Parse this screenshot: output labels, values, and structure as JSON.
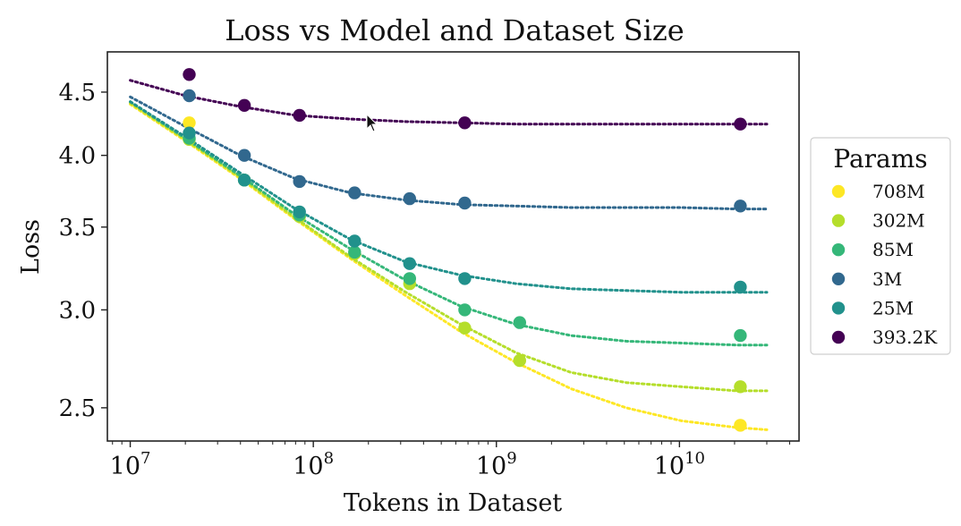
{
  "chart_data": {
    "type": "scatter",
    "title": "Loss vs Model and Dataset Size",
    "xlabel": "Tokens in Dataset",
    "ylabel": "Loss",
    "xscale": "log",
    "yscale": "log",
    "xlim": [
      7500000,
      45000000000
    ],
    "ylim": [
      2.35,
      4.85
    ],
    "yticks": [
      2.5,
      3.0,
      3.5,
      4.0,
      4.5
    ],
    "ytick_labels": [
      "2.5",
      "3.0",
      "3.5",
      "4.0",
      "4.5"
    ],
    "xticks": [
      {
        "value": 10000000,
        "base": "10",
        "exp": "7"
      },
      {
        "value": 100000000,
        "base": "10",
        "exp": "8"
      },
      {
        "value": 1000000000,
        "base": "10",
        "exp": "9"
      },
      {
        "value": 10000000000,
        "base": "10",
        "exp": "10"
      }
    ],
    "legend": {
      "title": "Params",
      "position": "right"
    },
    "series": [
      {
        "name": "708M",
        "color": "#fde725",
        "points": [
          [
            21000000,
            4.25
          ],
          [
            21500000000,
            2.42
          ]
        ],
        "fit": [
          [
            10000000,
            4.4
          ],
          [
            20000000,
            4.11
          ],
          [
            40000000,
            3.83
          ],
          [
            80000000,
            3.55
          ],
          [
            160000000,
            3.3
          ],
          [
            320000000,
            3.08
          ],
          [
            640000000,
            2.88
          ],
          [
            1280000000,
            2.72
          ],
          [
            2560000000,
            2.59
          ],
          [
            5120000000,
            2.5
          ],
          [
            10240000000,
            2.44
          ],
          [
            20480000000,
            2.41
          ],
          [
            30000000000,
            2.4
          ]
        ]
      },
      {
        "name": "302M",
        "color": "#b5de2b",
        "points": [
          [
            21000000,
            4.12
          ],
          [
            42000000,
            3.82
          ],
          [
            84000000,
            3.57
          ],
          [
            168000000,
            3.33
          ],
          [
            336000000,
            3.15
          ],
          [
            672000000,
            2.9
          ],
          [
            1340000000,
            2.73
          ],
          [
            21500000000,
            2.6
          ]
        ],
        "fit": [
          [
            10000000,
            4.41
          ],
          [
            20000000,
            4.12
          ],
          [
            40000000,
            3.84
          ],
          [
            80000000,
            3.56
          ],
          [
            160000000,
            3.31
          ],
          [
            320000000,
            3.1
          ],
          [
            640000000,
            2.92
          ],
          [
            1280000000,
            2.77
          ],
          [
            2560000000,
            2.67
          ],
          [
            5120000000,
            2.62
          ],
          [
            10240000000,
            2.6
          ],
          [
            20480000000,
            2.58
          ],
          [
            30000000000,
            2.58
          ]
        ]
      },
      {
        "name": "85M",
        "color": "#35b779",
        "points": [
          [
            21000000,
            4.13
          ],
          [
            42000000,
            3.82
          ],
          [
            84000000,
            3.58
          ],
          [
            168000000,
            3.34
          ],
          [
            336000000,
            3.18
          ],
          [
            672000000,
            3.0
          ],
          [
            1340000000,
            2.93
          ],
          [
            21500000000,
            2.86
          ]
        ],
        "fit": [
          [
            10000000,
            4.42
          ],
          [
            20000000,
            4.13
          ],
          [
            40000000,
            3.85
          ],
          [
            80000000,
            3.58
          ],
          [
            160000000,
            3.36
          ],
          [
            320000000,
            3.17
          ],
          [
            640000000,
            3.02
          ],
          [
            1280000000,
            2.92
          ],
          [
            2560000000,
            2.86
          ],
          [
            5120000000,
            2.83
          ],
          [
            10240000000,
            2.82
          ],
          [
            20480000000,
            2.81
          ],
          [
            30000000000,
            2.81
          ]
        ]
      },
      {
        "name": "3M",
        "color": "#31688e",
        "points": [
          [
            21000000,
            4.47
          ],
          [
            42000000,
            4.0
          ],
          [
            84000000,
            3.81
          ],
          [
            168000000,
            3.73
          ],
          [
            336000000,
            3.69
          ],
          [
            672000000,
            3.66
          ],
          [
            21500000000,
            3.64
          ]
        ],
        "fit": [
          [
            10000000,
            4.46
          ],
          [
            20000000,
            4.22
          ],
          [
            40000000,
            4.0
          ],
          [
            80000000,
            3.83
          ],
          [
            160000000,
            3.73
          ],
          [
            320000000,
            3.68
          ],
          [
            640000000,
            3.65
          ],
          [
            1280000000,
            3.64
          ],
          [
            2560000000,
            3.63
          ],
          [
            5120000000,
            3.63
          ],
          [
            10240000000,
            3.63
          ],
          [
            20480000000,
            3.62
          ],
          [
            30000000000,
            3.62
          ]
        ]
      },
      {
        "name": "25M",
        "color": "#21918c",
        "points": [
          [
            21000000,
            4.17
          ],
          [
            42000000,
            3.82
          ],
          [
            84000000,
            3.6
          ],
          [
            168000000,
            3.41
          ],
          [
            336000000,
            3.27
          ],
          [
            672000000,
            3.18
          ],
          [
            21500000000,
            3.13
          ]
        ],
        "fit": [
          [
            10000000,
            4.42
          ],
          [
            20000000,
            4.14
          ],
          [
            40000000,
            3.87
          ],
          [
            80000000,
            3.62
          ],
          [
            160000000,
            3.42
          ],
          [
            320000000,
            3.28
          ],
          [
            640000000,
            3.2
          ],
          [
            1280000000,
            3.15
          ],
          [
            2560000000,
            3.12
          ],
          [
            5120000000,
            3.11
          ],
          [
            10240000000,
            3.1
          ],
          [
            20480000000,
            3.1
          ],
          [
            30000000000,
            3.1
          ]
        ]
      },
      {
        "name": "393.2K",
        "color": "#440154",
        "points": [
          [
            21000000,
            4.65
          ],
          [
            42000000,
            4.39
          ],
          [
            84000000,
            4.31
          ],
          [
            672000000,
            4.25
          ],
          [
            21500000000,
            4.24
          ]
        ],
        "fit": [
          [
            10000000,
            4.6
          ],
          [
            20000000,
            4.47
          ],
          [
            40000000,
            4.38
          ],
          [
            80000000,
            4.31
          ],
          [
            160000000,
            4.28
          ],
          [
            320000000,
            4.26
          ],
          [
            640000000,
            4.25
          ],
          [
            1280000000,
            4.24
          ],
          [
            2560000000,
            4.24
          ],
          [
            5120000000,
            4.24
          ],
          [
            10240000000,
            4.24
          ],
          [
            20480000000,
            4.24
          ],
          [
            30000000000,
            4.24
          ]
        ]
      }
    ]
  }
}
